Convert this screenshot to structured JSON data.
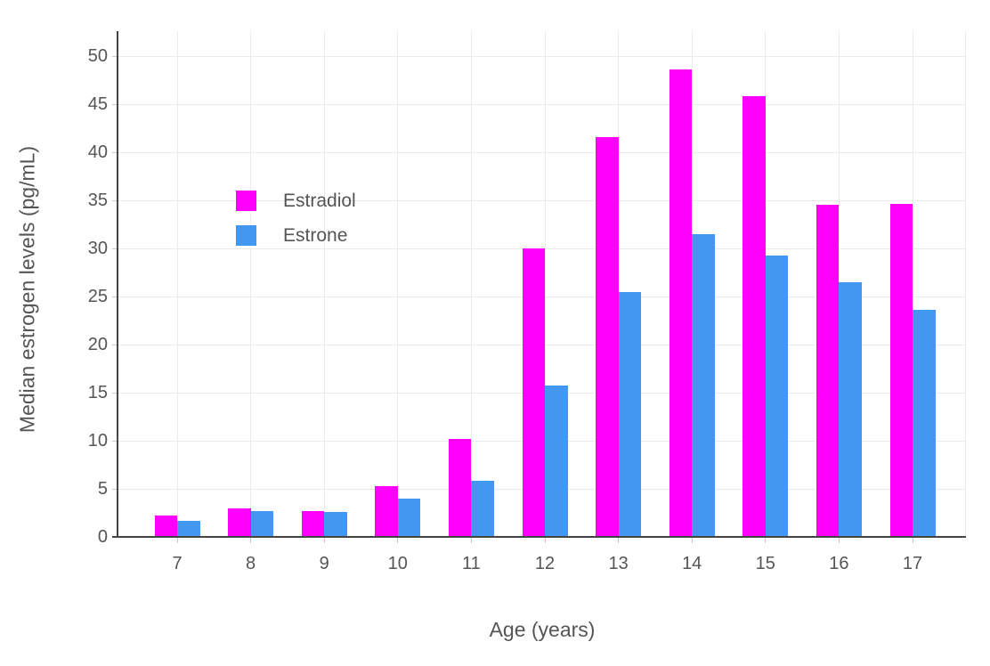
{
  "chart_data": {
    "type": "bar",
    "title": "",
    "xlabel": "Age (years)",
    "ylabel": "Median estrogen levels (pg/mL)",
    "categories": [
      7,
      8,
      9,
      10,
      11,
      12,
      13,
      14,
      15,
      16,
      17
    ],
    "series": [
      {
        "name": "Estradiol",
        "color": "#ff00fc",
        "values": [
          2.2,
          3.0,
          2.7,
          5.3,
          10.2,
          30.0,
          41.6,
          48.6,
          45.8,
          34.5,
          34.6
        ]
      },
      {
        "name": "Estrone",
        "color": "#4298f0",
        "values": [
          1.7,
          2.7,
          2.6,
          4.0,
          5.8,
          15.7,
          25.5,
          31.5,
          29.3,
          26.5,
          23.6
        ]
      }
    ],
    "ylim": [
      0,
      50
    ],
    "ytick_step": 5,
    "grid": true,
    "legend_position": "inside-top-left",
    "colors": {
      "background": "#ffffff",
      "grid": "#ebebeb",
      "axis_line": "#444444",
      "tick_mark": "#c9c9c9",
      "text": "#555555"
    }
  }
}
